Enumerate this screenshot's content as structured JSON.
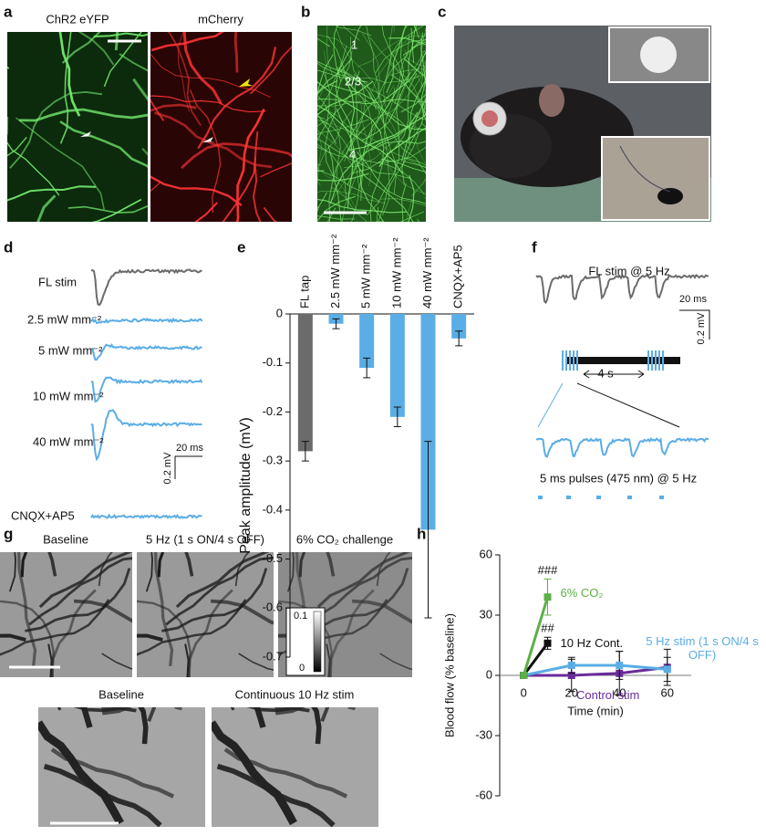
{
  "panel_labels": [
    "a",
    "b",
    "c",
    "d",
    "e",
    "f",
    "g",
    "h"
  ],
  "panel_a": {
    "left_title": "ChR2 eYFP",
    "right_title": "mCherry"
  },
  "panel_b": {
    "layers": [
      "1",
      "2/3",
      "4"
    ]
  },
  "panel_d": {
    "traces": [
      "FL stim",
      "2.5 mW mm⁻²",
      "5 mW mm⁻²",
      "10 mW mm⁻²",
      "40 mW mm⁻²",
      "CNQX+AP5"
    ],
    "time_scale": "20 ms",
    "voltage_scale": "0.2 mV"
  },
  "panel_f": {
    "title": "FL stim @ 5 Hz",
    "time_scale": "20 ms",
    "voltage_scale": "0.2 mV",
    "interval": "4 s",
    "pulse_label": "5 ms pulses (475 nm) @ 5 Hz"
  },
  "panel_g": {
    "top_titles": [
      "Baseline",
      "5 Hz (1 s ON/4 s OFF)",
      "6% CO₂ challenge"
    ],
    "colorbar_ticks": [
      0.1,
      0
    ],
    "bottom_titles": [
      "Baseline",
      "Continuous 10 Hz stim"
    ]
  },
  "chart_data": [
    {
      "type": "bar",
      "ylabel": "Peak amplitude (mV)",
      "categories": [
        "FL tap",
        "2.5 mW mm⁻²",
        "5 mW mm⁻²",
        "10 mW mm⁻²",
        "40 mW mm⁻²",
        "CNQX+AP5"
      ],
      "values": [
        -0.28,
        -0.02,
        -0.11,
        -0.21,
        -0.44,
        -0.05
      ],
      "errors": [
        0.02,
        0.01,
        0.02,
        0.02,
        0.18,
        0.015
      ],
      "colors": [
        "#6b6b6b",
        "#5aade5",
        "#5aade5",
        "#5aade5",
        "#5aade5",
        "#5aade5"
      ],
      "ylim": [
        -0.7,
        0
      ],
      "yticks": [
        0,
        -0.1,
        -0.2,
        -0.3,
        -0.4,
        -0.5,
        -0.6,
        -0.7
      ]
    },
    {
      "type": "line",
      "xlabel": "Time (min)",
      "ylabel": "Blood flow (% baseline)",
      "xlim": [
        -10,
        70
      ],
      "ylim": [
        -60,
        60
      ],
      "xticks": [
        0,
        20,
        40,
        60
      ],
      "yticks": [
        -60,
        -30,
        0,
        30,
        60
      ],
      "series": [
        {
          "name": "6% CO₂",
          "color": "#5cb046",
          "x": [
            0,
            10
          ],
          "values": [
            0,
            39
          ],
          "errors": [
            0,
            9
          ]
        },
        {
          "name": "10 Hz Cont.",
          "color": "#111111",
          "x": [
            0,
            10
          ],
          "values": [
            0,
            16
          ],
          "errors": [
            0,
            3
          ]
        },
        {
          "name": "5 Hz stim (1 s ON/4 s OFF)",
          "color": "#5aade5",
          "x": [
            0,
            20,
            40,
            60
          ],
          "values": [
            0,
            5,
            5,
            3
          ],
          "errors": [
            0,
            4,
            7,
            6
          ]
        },
        {
          "name": "Control stim",
          "color": "#6a2c9a",
          "x": [
            0,
            20,
            40,
            60
          ],
          "values": [
            0,
            0,
            1,
            4
          ],
          "errors": [
            0,
            8,
            11,
            9
          ]
        }
      ],
      "annotations": [
        "###",
        "##"
      ]
    }
  ]
}
